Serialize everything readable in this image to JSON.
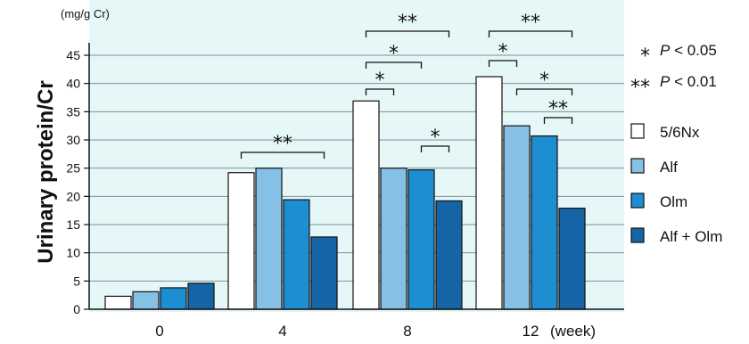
{
  "chart_data": {
    "type": "bar",
    "ylabel": "Urinary protein/Cr",
    "yunit": "(mg/g Cr)",
    "xunit": "(week)",
    "ylim": [
      0,
      45
    ],
    "yticks": [
      0,
      5,
      10,
      15,
      20,
      25,
      30,
      35,
      40,
      45
    ],
    "grid": true,
    "categories": [
      "0",
      "4",
      "8",
      "12"
    ],
    "series": [
      {
        "name": "5/6Nx",
        "color": "#ffffff",
        "values": [
          2.3,
          24.2,
          36.9,
          41.2
        ]
      },
      {
        "name": "Alf",
        "color": "#86c1e5",
        "values": [
          3.1,
          25.0,
          25.0,
          32.5
        ]
      },
      {
        "name": "Olm",
        "color": "#1e8ed3",
        "values": [
          3.8,
          19.4,
          24.7,
          30.7
        ]
      },
      {
        "name": "Alf + Olm",
        "color": "#1565a6",
        "values": [
          4.6,
          12.8,
          19.2,
          17.9
        ]
      }
    ],
    "significance_legend": [
      {
        "symbol": "*",
        "p": "P",
        "rest": " < 0.05"
      },
      {
        "symbol": "**",
        "p": "P",
        "rest": " < 0.01"
      }
    ],
    "brackets": [
      {
        "category": "4",
        "from": 0,
        "to": 3,
        "label": "**"
      },
      {
        "category": "8",
        "from": 0,
        "to": 3,
        "label": "**"
      },
      {
        "category": "8",
        "from": 0,
        "to": 2,
        "label": "*"
      },
      {
        "category": "8",
        "from": 0,
        "to": 1,
        "label": "*"
      },
      {
        "category": "8",
        "from": 2,
        "to": 3,
        "label": "*"
      },
      {
        "category": "12",
        "from": 0,
        "to": 3,
        "label": "**"
      },
      {
        "category": "12",
        "from": 0,
        "to": 1,
        "label": "*"
      },
      {
        "category": "12",
        "from": 1,
        "to": 3,
        "label": "*"
      },
      {
        "category": "12",
        "from": 2,
        "to": 3,
        "label": "**"
      }
    ],
    "colors": {
      "plot_bg": "#e6f7f8",
      "grid": "#7f8f97",
      "bar_stroke": "#111111"
    }
  }
}
